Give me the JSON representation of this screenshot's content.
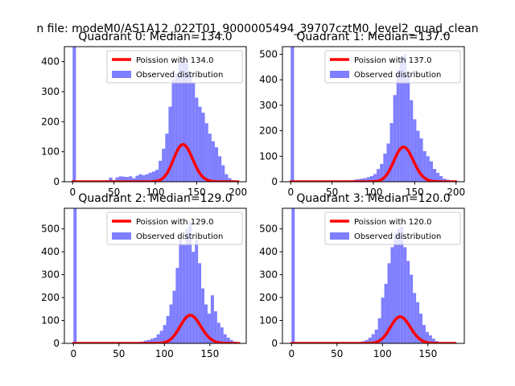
{
  "figure": {
    "suptitle": "n file: modeM0/AS1A12_022T01_9000005494_39707cztM0_level2_quad_clean"
  },
  "colors": {
    "observed": "#7f7fff",
    "poisson": "#ff0000",
    "axes": "#000000",
    "background": "#ffffff"
  },
  "chart_data": [
    {
      "type": "bar",
      "title": "Quadrant 0: Median=134.0",
      "xlim": [
        -10,
        210
      ],
      "ylim": [
        0,
        450
      ],
      "xticks": [
        0,
        50,
        100,
        150,
        200
      ],
      "yticks": [
        0,
        100,
        200,
        300,
        400
      ],
      "legend": {
        "placement": "top-right",
        "poisson_label": "Poission with 134.0",
        "observed_label": "Observed distribution"
      },
      "bins": [
        [
          0,
          4,
          450
        ],
        [
          36,
          40,
          2
        ],
        [
          40,
          44,
          5
        ],
        [
          44,
          48,
          14
        ],
        [
          48,
          52,
          6
        ],
        [
          52,
          56,
          15
        ],
        [
          56,
          60,
          18
        ],
        [
          60,
          64,
          17
        ],
        [
          64,
          68,
          16
        ],
        [
          68,
          72,
          18
        ],
        [
          72,
          76,
          12
        ],
        [
          76,
          80,
          20
        ],
        [
          80,
          84,
          25
        ],
        [
          84,
          88,
          22
        ],
        [
          88,
          92,
          25
        ],
        [
          92,
          96,
          30
        ],
        [
          96,
          100,
          34
        ],
        [
          100,
          104,
          40
        ],
        [
          104,
          108,
          70
        ],
        [
          108,
          112,
          110
        ],
        [
          112,
          116,
          160
        ],
        [
          116,
          120,
          250
        ],
        [
          120,
          124,
          340
        ],
        [
          124,
          128,
          360
        ],
        [
          128,
          132,
          395
        ],
        [
          132,
          136,
          410
        ],
        [
          136,
          140,
          395
        ],
        [
          140,
          144,
          365
        ],
        [
          144,
          148,
          330
        ],
        [
          148,
          152,
          280
        ],
        [
          152,
          156,
          250
        ],
        [
          156,
          160,
          230
        ],
        [
          160,
          164,
          195
        ],
        [
          164,
          168,
          160
        ],
        [
          168,
          172,
          135
        ],
        [
          172,
          176,
          115
        ],
        [
          176,
          180,
          85
        ],
        [
          180,
          184,
          55
        ],
        [
          184,
          188,
          25
        ],
        [
          188,
          192,
          12
        ],
        [
          192,
          196,
          5
        ]
      ],
      "poisson": {
        "lambda": 134,
        "total": 3600,
        "x_range": [
          0,
          200
        ]
      }
    },
    {
      "type": "bar",
      "title": "Quadrant 1: Median=137.0",
      "xlim": [
        -10,
        210
      ],
      "ylim": [
        0,
        530
      ],
      "xticks": [
        0,
        50,
        100,
        150,
        200
      ],
      "yticks": [
        0,
        100,
        200,
        300,
        400,
        500
      ],
      "legend": {
        "placement": "top-right",
        "poisson_label": "Poission with 137.0",
        "observed_label": "Observed distribution"
      },
      "bins": [
        [
          0,
          4,
          530
        ],
        [
          60,
          64,
          2
        ],
        [
          64,
          68,
          3
        ],
        [
          68,
          72,
          4
        ],
        [
          72,
          76,
          5
        ],
        [
          76,
          80,
          8
        ],
        [
          80,
          84,
          10
        ],
        [
          84,
          88,
          12
        ],
        [
          88,
          92,
          14
        ],
        [
          92,
          96,
          18
        ],
        [
          96,
          100,
          22
        ],
        [
          100,
          104,
          30
        ],
        [
          104,
          108,
          50
        ],
        [
          108,
          112,
          70
        ],
        [
          112,
          116,
          110
        ],
        [
          116,
          120,
          150
        ],
        [
          120,
          124,
          230
        ],
        [
          124,
          128,
          340
        ],
        [
          128,
          132,
          440
        ],
        [
          132,
          136,
          490
        ],
        [
          136,
          140,
          500
        ],
        [
          140,
          144,
          420
        ],
        [
          144,
          148,
          320
        ],
        [
          148,
          152,
          245
        ],
        [
          152,
          156,
          200
        ],
        [
          156,
          160,
          170
        ],
        [
          160,
          164,
          120
        ],
        [
          164,
          168,
          100
        ],
        [
          168,
          172,
          80
        ],
        [
          172,
          176,
          50
        ],
        [
          176,
          180,
          35
        ],
        [
          180,
          184,
          22
        ],
        [
          184,
          188,
          12
        ],
        [
          188,
          192,
          8
        ],
        [
          192,
          196,
          5
        ]
      ],
      "poisson": {
        "lambda": 137,
        "total": 4000,
        "x_range": [
          0,
          200
        ]
      }
    },
    {
      "type": "bar",
      "title": "Quadrant 2: Median=129.0",
      "xlim": [
        -10,
        190
      ],
      "ylim": [
        0,
        590
      ],
      "xticks": [
        0,
        50,
        100,
        150
      ],
      "yticks": [
        0,
        100,
        200,
        300,
        400,
        500
      ],
      "legend": {
        "placement": "top-right",
        "poisson_label": "Poission with 129.0",
        "observed_label": "Observed distribution"
      },
      "bins": [
        [
          0,
          3.5,
          590
        ],
        [
          60,
          63.5,
          3
        ],
        [
          63.5,
          67,
          4
        ],
        [
          67,
          70.5,
          5
        ],
        [
          70.5,
          74,
          6
        ],
        [
          74,
          77.5,
          8
        ],
        [
          77.5,
          81,
          12
        ],
        [
          81,
          84.5,
          15
        ],
        [
          84.5,
          88,
          20
        ],
        [
          88,
          91.5,
          25
        ],
        [
          91.5,
          95,
          40
        ],
        [
          95,
          98.5,
          55
        ],
        [
          98.5,
          102,
          80
        ],
        [
          102,
          105.5,
          120
        ],
        [
          105.5,
          109,
          170
        ],
        [
          109,
          112.5,
          230
        ],
        [
          112.5,
          116,
          330
        ],
        [
          116,
          119.5,
          460
        ],
        [
          119.5,
          123,
          430
        ],
        [
          123,
          126.5,
          500
        ],
        [
          126.5,
          130,
          530
        ],
        [
          130,
          133.5,
          400
        ],
        [
          133.5,
          137,
          450
        ],
        [
          137,
          140.5,
          350
        ],
        [
          140.5,
          144,
          240
        ],
        [
          144,
          147.5,
          170
        ],
        [
          147.5,
          151,
          130
        ],
        [
          151,
          154.5,
          210
        ],
        [
          154.5,
          158,
          140
        ],
        [
          158,
          161.5,
          90
        ],
        [
          161.5,
          165,
          70
        ],
        [
          165,
          168.5,
          40
        ],
        [
          168.5,
          172,
          25
        ],
        [
          172,
          175.5,
          15
        ],
        [
          175.5,
          179,
          8
        ],
        [
          179,
          182.5,
          4
        ]
      ],
      "poisson": {
        "lambda": 129,
        "total": 3500,
        "x_range": [
          0,
          182
        ]
      }
    },
    {
      "type": "bar",
      "title": "Quadrant 3: Median=120.0",
      "xlim": [
        -10,
        190
      ],
      "ylim": [
        0,
        590
      ],
      "xticks": [
        0,
        50,
        100,
        150
      ],
      "yticks": [
        0,
        100,
        200,
        300,
        400,
        500
      ],
      "legend": {
        "placement": "top-right",
        "poisson_label": "Poission with 120.0",
        "observed_label": "Observed distribution"
      },
      "bins": [
        [
          0,
          3.5,
          590
        ],
        [
          60,
          63.5,
          2
        ],
        [
          63.5,
          67,
          3
        ],
        [
          67,
          70.5,
          4
        ],
        [
          70.5,
          74,
          5
        ],
        [
          74,
          77.5,
          7
        ],
        [
          77.5,
          81,
          10
        ],
        [
          81,
          84.5,
          15
        ],
        [
          84.5,
          88,
          25
        ],
        [
          88,
          91.5,
          40
        ],
        [
          91.5,
          95,
          60
        ],
        [
          95,
          98.5,
          110
        ],
        [
          98.5,
          102,
          200
        ],
        [
          102,
          105.5,
          260
        ],
        [
          105.5,
          109,
          350
        ],
        [
          109,
          112.5,
          420
        ],
        [
          112.5,
          116,
          480
        ],
        [
          116,
          119.5,
          500
        ],
        [
          119.5,
          123,
          510
        ],
        [
          123,
          126.5,
          420
        ],
        [
          126.5,
          130,
          360
        ],
        [
          130,
          133.5,
          300
        ],
        [
          133.5,
          137,
          220
        ],
        [
          137,
          140.5,
          180
        ],
        [
          140.5,
          144,
          130
        ],
        [
          144,
          147.5,
          80
        ],
        [
          147.5,
          151,
          50
        ],
        [
          151,
          154.5,
          35
        ],
        [
          154.5,
          158,
          20
        ],
        [
          158,
          161.5,
          10
        ],
        [
          161.5,
          165,
          6
        ],
        [
          165,
          168.5,
          3
        ]
      ],
      "poisson": {
        "lambda": 120,
        "total": 3200,
        "x_range": [
          0,
          180
        ]
      }
    }
  ]
}
